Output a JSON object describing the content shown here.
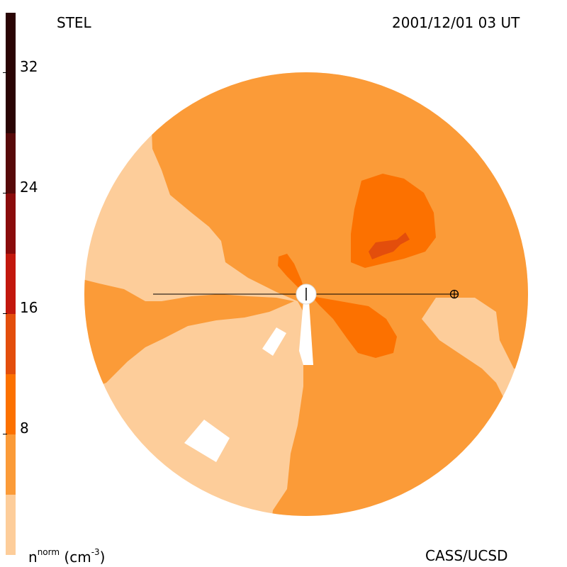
{
  "header": {
    "instrument": "STEL",
    "timestamp": "2001/12/01 03 UT"
  },
  "footer": {
    "units_label": "n",
    "units_sup": "norm",
    "units_paren": "(cm",
    "units_exp": "-3",
    "units_close": ")",
    "credit": "CASS/UCSD"
  },
  "colorbar": {
    "ticks": [
      "32",
      "24",
      "16",
      "8"
    ],
    "levels": [
      "#fdcd9a",
      "#fb9b38",
      "#fc7100",
      "#e34e0c",
      "#c2180d",
      "#8a0b0b",
      "#570909",
      "#2a0505"
    ]
  },
  "map": {
    "sun_symbol": "sun-icon",
    "earth_symbol": "earth-icon"
  }
}
